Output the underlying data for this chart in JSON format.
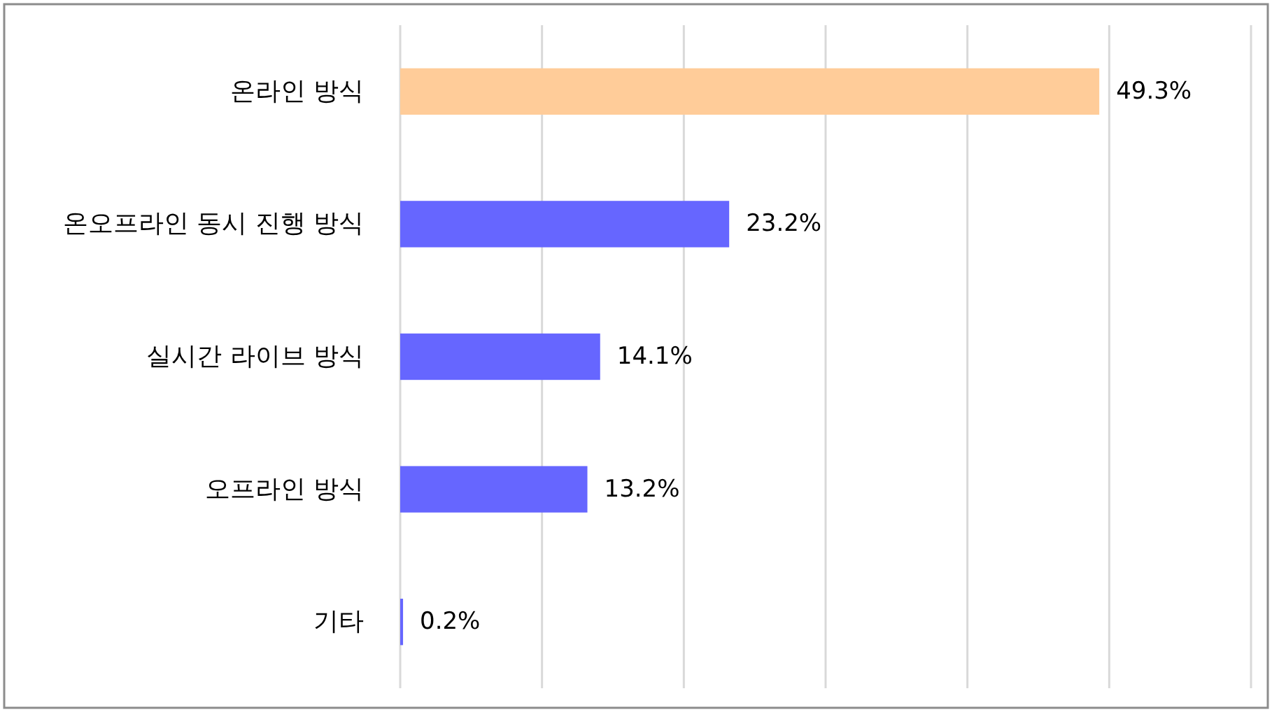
{
  "chart_data": {
    "type": "bar",
    "orientation": "horizontal",
    "categories": [
      "온라인 방식",
      "온오프라인 동시 진행 방식",
      "실시간 라이브 방식",
      "오프라인 방식",
      "기타"
    ],
    "values": [
      49.3,
      23.2,
      14.1,
      13.2,
      0.2
    ],
    "colors": [
      "#ffcc99",
      "#6666ff",
      "#6666ff",
      "#6666ff",
      "#6666ff"
    ],
    "value_labels": [
      "49.3%",
      "23.2%",
      "14.1%",
      "13.2%",
      "0.2%"
    ],
    "xlim": [
      0,
      60
    ],
    "xticks": [
      {
        "value": 0,
        "label": null
      },
      {
        "value": 10,
        "label": null
      },
      {
        "value": 20,
        "label": null
      },
      {
        "value": 30,
        "label": null
      },
      {
        "value": 40,
        "label": null
      },
      {
        "value": 50,
        "label": null
      },
      {
        "value": 60,
        "label": null
      }
    ],
    "grid": "x",
    "tick_labels": "y"
  }
}
